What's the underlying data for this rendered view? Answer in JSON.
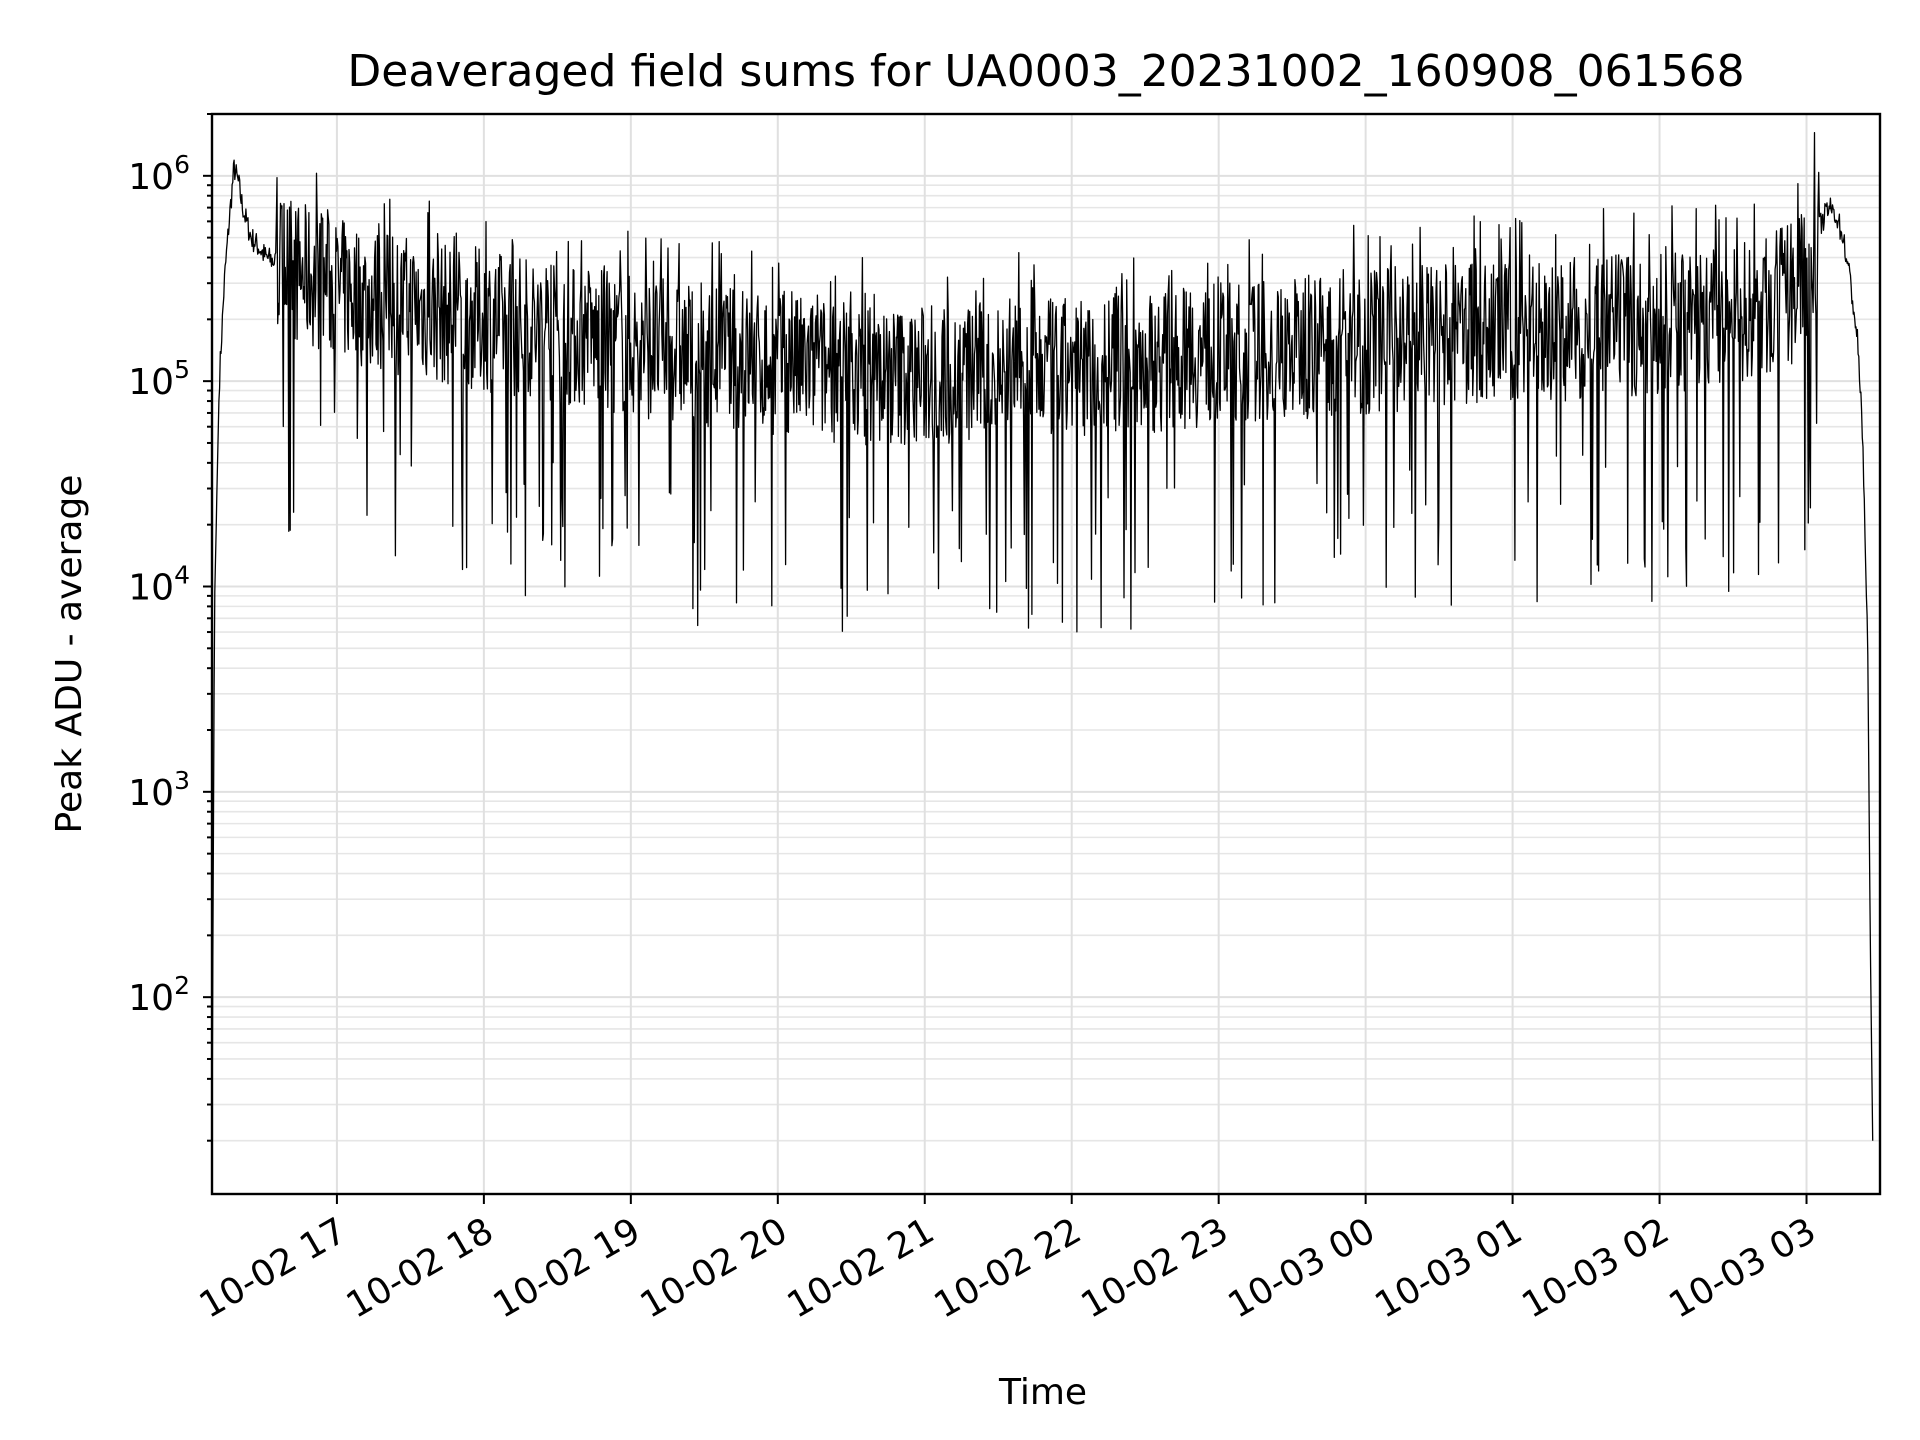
{
  "chart_data": {
    "type": "line",
    "title": "Deaveraged field sums for UA0003_20231002_160908_061568",
    "xlabel": "Time",
    "ylabel": "Peak ADU - average",
    "x_scale": "time",
    "y_scale": "log",
    "xlim": [
      "2023-10-02 16:09",
      "2023-10-03 03:30"
    ],
    "ylim": [
      11,
      2000000
    ],
    "grid": true,
    "legend": "none",
    "line_color": "#000000",
    "x_ticks": [
      {
        "time": "2023-10-02 17:00",
        "label": "10-02 17"
      },
      {
        "time": "2023-10-02 18:00",
        "label": "10-02 18"
      },
      {
        "time": "2023-10-02 19:00",
        "label": "10-02 19"
      },
      {
        "time": "2023-10-02 20:00",
        "label": "10-02 20"
      },
      {
        "time": "2023-10-02 21:00",
        "label": "10-02 21"
      },
      {
        "time": "2023-10-02 22:00",
        "label": "10-02 22"
      },
      {
        "time": "2023-10-02 23:00",
        "label": "10-02 23"
      },
      {
        "time": "2023-10-03 00:00",
        "label": "10-03 00"
      },
      {
        "time": "2023-10-03 01:00",
        "label": "10-03 01"
      },
      {
        "time": "2023-10-03 02:00",
        "label": "10-03 02"
      },
      {
        "time": "2023-10-03 03:00",
        "label": "10-03 03"
      }
    ],
    "y_ticks": [
      {
        "value": 100,
        "base": "10",
        "exp": "2"
      },
      {
        "value": 1000,
        "base": "10",
        "exp": "3"
      },
      {
        "value": 10000,
        "base": "10",
        "exp": "4"
      },
      {
        "value": 100000,
        "base": "10",
        "exp": "5"
      },
      {
        "value": 1000000,
        "base": "10",
        "exp": "6"
      }
    ],
    "series": [
      {
        "x": [
          "2023-10-02 16:09",
          "2023-10-02 16:10",
          "2023-10-02 16:12",
          "2023-10-02 16:14",
          "2023-10-02 16:16",
          "2023-10-02 16:18",
          "2023-10-02 16:20",
          "2023-10-02 16:21",
          "2023-10-02 16:23",
          "2023-10-02 16:25",
          "2023-10-02 16:28",
          "2023-10-02 16:31",
          "2023-10-02 16:35",
          "2023-10-02 16:40",
          "2023-10-02 16:45",
          "2023-10-02 16:50",
          "2023-10-02 16:55",
          "2023-10-02 17:00",
          "2023-10-02 17:15",
          "2023-10-02 17:30",
          "2023-10-02 17:45",
          "2023-10-02 18:00",
          "2023-10-02 18:30",
          "2023-10-02 19:00",
          "2023-10-02 19:30",
          "2023-10-02 20:00",
          "2023-10-02 20:30",
          "2023-10-02 21:00",
          "2023-10-02 21:30",
          "2023-10-02 22:00",
          "2023-10-02 22:30",
          "2023-10-02 23:00",
          "2023-10-02 23:30",
          "2023-10-03 00:00",
          "2023-10-03 00:30",
          "2023-10-03 01:00",
          "2023-10-03 01:30",
          "2023-10-03 02:00",
          "2023-10-03 02:30",
          "2023-10-03 02:45",
          "2023-10-03 03:00",
          "2023-10-03 03:05",
          "2023-10-03 03:09",
          "2023-10-03 03:12",
          "2023-10-03 03:15",
          "2023-10-03 03:18",
          "2023-10-03 03:21",
          "2023-10-03 03:23",
          "2023-10-03 03:25",
          "2023-10-03 03:26",
          "2023-10-03 03:27"
        ],
        "values": [
          20,
          8000,
          100000,
          300000,
          600000,
          1100000,
          900000,
          750000,
          600000,
          500000,
          450000,
          400000,
          380000,
          360000,
          330000,
          320000,
          300000,
          280000,
          250000,
          230000,
          210000,
          200000,
          170000,
          150000,
          135000,
          120000,
          110000,
          105000,
          110000,
          115000,
          125000,
          135000,
          145000,
          155000,
          165000,
          175000,
          180000,
          190000,
          210000,
          230000,
          300000,
          550000,
          700000,
          650000,
          500000,
          300000,
          150000,
          50000,
          5000,
          200,
          20
        ]
      }
    ]
  }
}
